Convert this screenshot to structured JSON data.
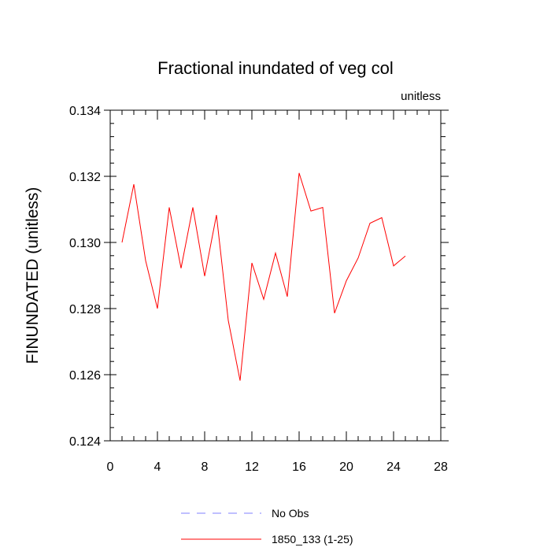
{
  "chart_data": {
    "type": "line",
    "title": "Fractional inundated of veg col",
    "units_label": "unitless",
    "ylabel": "FINUNDATED  (unitless)",
    "xlabel": "",
    "xlim": [
      0,
      28
    ],
    "ylim": [
      0.124,
      0.134
    ],
    "x_ticks": [
      0,
      4,
      8,
      12,
      16,
      20,
      24,
      28
    ],
    "x_tick_labels": [
      "0",
      "4",
      "8",
      "12",
      "16",
      "20",
      "24",
      "28"
    ],
    "y_ticks": [
      0.124,
      0.126,
      0.128,
      0.13,
      0.132,
      0.134
    ],
    "y_tick_labels": [
      "0.124",
      "0.126",
      "0.128",
      "0.130",
      "0.132",
      "0.134"
    ],
    "grid": false,
    "legend_position": "bottom-center",
    "series": [
      {
        "name": "1850_133 (1-25)",
        "color": "#ff0000",
        "style": "solid",
        "x": [
          1,
          2,
          3,
          4,
          5,
          6,
          7,
          8,
          9,
          10,
          11,
          12,
          13,
          14,
          15,
          16,
          17,
          18,
          19,
          20,
          21,
          22,
          23,
          24,
          25
        ],
        "y": [
          0.13,
          0.13176,
          0.12945,
          0.128,
          0.13106,
          0.12922,
          0.13106,
          0.12898,
          0.13083,
          0.12764,
          0.12582,
          0.12938,
          0.12828,
          0.12968,
          0.12836,
          0.1321,
          0.13095,
          0.13106,
          0.12786,
          0.12884,
          0.12953,
          0.13058,
          0.13075,
          0.12929,
          0.12959
        ]
      }
    ],
    "legend": [
      {
        "label": "No Obs",
        "color": "#8080ff",
        "style": "dashed"
      },
      {
        "label": "1850_133 (1-25)",
        "color": "#ff0000",
        "style": "solid"
      }
    ]
  }
}
